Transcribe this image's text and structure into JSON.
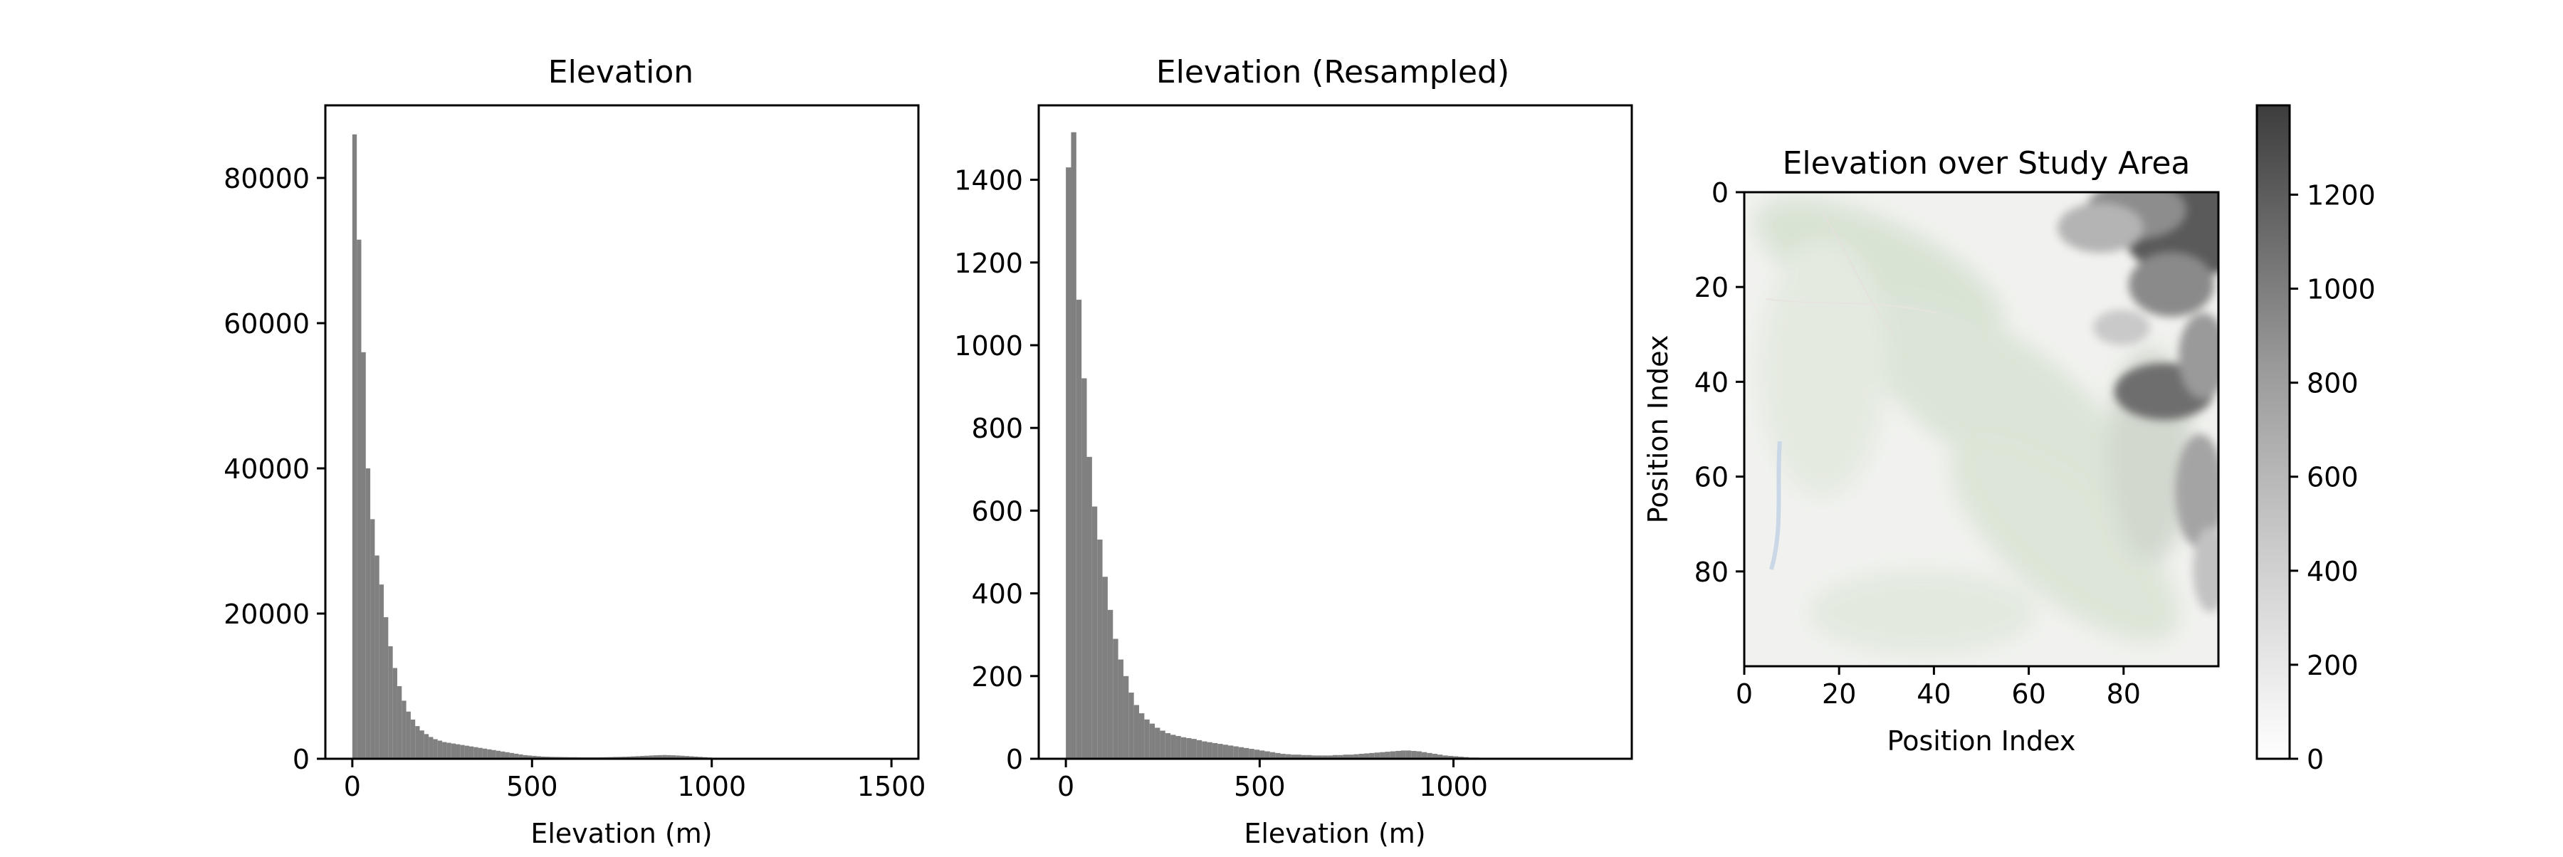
{
  "colors": {
    "bars": "#808080",
    "axes": "#000000",
    "background": "#ffffff"
  },
  "chart_data": [
    {
      "type": "bar",
      "title": "Elevation",
      "xlabel": "Elevation (m)",
      "ylabel": "",
      "xlim": [
        -75,
        1575
      ],
      "ylim": [
        0,
        90000
      ],
      "xticks": [
        "0",
        "500",
        "1000",
        "1500"
      ],
      "yticks": [
        "0",
        "20000",
        "40000",
        "60000",
        "80000"
      ],
      "bin_width": 12.5,
      "bin_start": 0,
      "values": [
        86000,
        71500,
        56000,
        40000,
        33000,
        28000,
        24000,
        19500,
        15500,
        12500,
        10000,
        8000,
        6500,
        5400,
        4500,
        3900,
        3400,
        3000,
        2700,
        2500,
        2300,
        2200,
        2100,
        2000,
        1900,
        1800,
        1700,
        1600,
        1500,
        1400,
        1300,
        1200,
        1100,
        1000,
        900,
        800,
        700,
        600,
        500,
        450,
        400,
        350,
        300,
        280,
        260,
        250,
        240,
        230,
        220,
        220,
        210,
        200,
        200,
        200,
        200,
        210,
        220,
        230,
        250,
        260,
        280,
        300,
        330,
        360,
        390,
        420,
        450,
        480,
        500,
        520,
        500,
        480,
        450,
        420,
        380,
        340,
        300,
        260,
        220,
        180,
        150,
        120,
        100,
        80,
        70,
        60,
        50,
        40,
        30,
        25,
        20,
        15,
        12,
        10,
        8,
        6,
        5,
        4,
        3,
        2,
        2,
        1,
        1,
        1,
        1,
        1,
        1,
        1,
        1,
        1,
        1,
        1,
        1,
        1,
        1,
        1,
        1,
        1,
        1,
        1
      ]
    },
    {
      "type": "bar",
      "title": "Elevation (Resampled)",
      "xlabel": "Elevation (m)",
      "ylabel": "",
      "xlim": [
        -70,
        1460
      ],
      "ylim": [
        0,
        1580
      ],
      "xticks": [
        "0",
        "500",
        "1000"
      ],
      "yticks": [
        "0",
        "200",
        "400",
        "600",
        "800",
        "1000",
        "1200",
        "1400"
      ],
      "bin_width": 13.5,
      "bin_start": 0,
      "values": [
        1430,
        1515,
        1110,
        920,
        730,
        610,
        530,
        440,
        360,
        290,
        240,
        200,
        160,
        130,
        110,
        95,
        85,
        75,
        68,
        62,
        58,
        55,
        52,
        50,
        48,
        45,
        42,
        40,
        38,
        36,
        34,
        32,
        30,
        28,
        26,
        24,
        22,
        20,
        18,
        16,
        14,
        12,
        11,
        10,
        10,
        9,
        9,
        8,
        8,
        8,
        8,
        9,
        9,
        10,
        10,
        11,
        12,
        13,
        14,
        15,
        16,
        17,
        18,
        19,
        20,
        20,
        19,
        18,
        16,
        14,
        12,
        10,
        8,
        7,
        6,
        5,
        4,
        3,
        3,
        2,
        2,
        2,
        1,
        1,
        1,
        1,
        1,
        1,
        1,
        1,
        1,
        1,
        1,
        1,
        1,
        1,
        1,
        1,
        1,
        1
      ]
    },
    {
      "type": "heatmap",
      "title": "Elevation over Study Area",
      "xlabel": "Position Index",
      "ylabel": "Position Index",
      "xlim": [
        0,
        100
      ],
      "ylim": [
        100,
        0
      ],
      "xticks": [
        "0",
        "20",
        "40",
        "60",
        "80"
      ],
      "yticks": [
        "0",
        "20",
        "40",
        "60",
        "80"
      ],
      "colorbar": {
        "range": [
          0,
          1390
        ],
        "ticks": [
          "0",
          "200",
          "400",
          "600",
          "800",
          "1000",
          "1200"
        ],
        "colormap": "greys"
      }
    }
  ]
}
